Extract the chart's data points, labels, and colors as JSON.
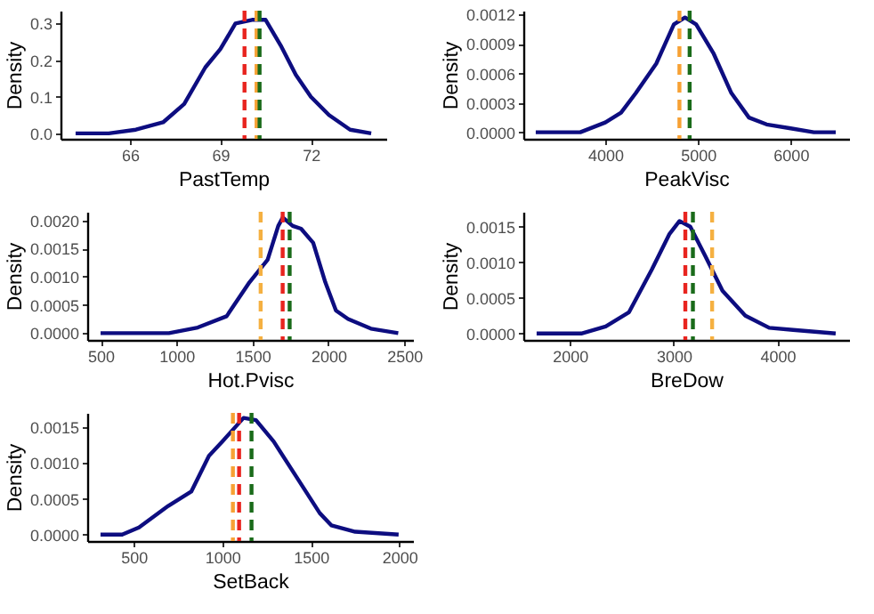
{
  "chart_data": [
    {
      "type": "line",
      "xlabel": "PastTemp",
      "ylabel": "Density",
      "xlim": [
        63.7,
        74.5
      ],
      "ylim": [
        -0.015,
        0.335
      ],
      "xticks": [
        66,
        69,
        72
      ],
      "yticks": [
        {
          "value": 0,
          "label": "0.0"
        },
        {
          "value": 0.1,
          "label": "0.1"
        },
        {
          "value": 0.2,
          "label": "0.2"
        },
        {
          "value": 0.3,
          "label": "0.3"
        }
      ],
      "x": [
        64.2,
        65.3,
        66.2,
        67.1,
        67.8,
        68.5,
        69,
        69.5,
        70.05,
        70.5,
        71,
        71.5,
        72,
        72.6,
        73.3,
        74
      ],
      "series": [
        {
          "color": "#0d0d80",
          "values": [
            0,
            0,
            0.01,
            0.03,
            0.08,
            0.18,
            0.23,
            0.3,
            0.31,
            0.31,
            0.24,
            0.16,
            0.1,
            0.05,
            0.01,
            0
          ]
        }
      ],
      "ref_lines": [
        {
          "axis": "x",
          "value": 69.8,
          "color": "#e8241f",
          "line_style": "dashed"
        },
        {
          "axis": "x",
          "value": 70.2,
          "color": "#f7a134",
          "line_style": "dashed"
        },
        {
          "axis": "x",
          "value": 70.3,
          "color": "#1a6b1a",
          "line_style": "dashed"
        }
      ]
    },
    {
      "type": "line",
      "xlabel": "PeakVisc",
      "ylabel": "Density",
      "xlim": [
        3116,
        6630
      ],
      "ylim": [
        -6.7e-05,
        0.00124
      ],
      "xticks": [
        4000,
        5000,
        6000
      ],
      "yticks": [
        {
          "value": 0,
          "label": "0.0000"
        },
        {
          "value": 0.0003,
          "label": "0.0003"
        },
        {
          "value": 0.0006,
          "label": "0.0006"
        },
        {
          "value": 0.0009,
          "label": "0.0009"
        },
        {
          "value": 0.0012,
          "label": "0.0012"
        }
      ],
      "x": [
        3250,
        3480,
        3730,
        4000,
        4170,
        4330,
        4550,
        4740,
        4860,
        4980,
        5170,
        5360,
        5550,
        5740,
        6000,
        6250,
        6486
      ],
      "series": [
        {
          "color": "#0d0d80",
          "values": [
            0,
            0,
            0,
            0.0001,
            0.0002,
            0.0004,
            0.0007,
            0.0011,
            0.00117,
            0.0011,
            0.0008,
            0.0004,
            0.00015,
            8e-05,
            4e-05,
            0,
            0
          ]
        }
      ],
      "ref_lines": [
        {
          "axis": "x",
          "value": 4800,
          "color": "#f7a134",
          "line_style": "dashed"
        },
        {
          "axis": "x",
          "value": 4910,
          "color": "#1a6b1a",
          "line_style": "dashed"
        }
      ]
    },
    {
      "type": "line",
      "xlabel": "Hot.Pvisc",
      "ylabel": "Density",
      "xlim": [
        412,
        2557
      ],
      "ylim": [
        -0.00012,
        0.00215
      ],
      "xticks": [
        500,
        1000,
        1500,
        2000,
        2500
      ],
      "yticks": [
        {
          "value": 0,
          "label": "0.0000"
        },
        {
          "value": 0.0005,
          "label": "0.0005"
        },
        {
          "value": 0.001,
          "label": "0.0010"
        },
        {
          "value": 0.0015,
          "label": "0.0015"
        },
        {
          "value": 0.002,
          "label": "0.0020"
        }
      ],
      "x": [
        500,
        950,
        1140,
        1330,
        1480,
        1600,
        1670,
        1700,
        1765,
        1820,
        1900,
        1980,
        2050,
        2130,
        2280,
        2460
      ],
      "series": [
        {
          "color": "#0d0d80",
          "values": [
            0,
            0,
            0.0001,
            0.0003,
            0.0009,
            0.0013,
            0.0019,
            0.00205,
            0.0019,
            0.00185,
            0.0016,
            0.0009,
            0.0004,
            0.00025,
            8e-05,
            0
          ]
        }
      ],
      "ref_lines": [
        {
          "axis": "x",
          "value": 1554,
          "color": "#f5b041",
          "line_style": "dashed"
        },
        {
          "axis": "x",
          "value": 1699,
          "color": "#e8241f",
          "line_style": "dashed"
        },
        {
          "axis": "x",
          "value": 1745,
          "color": "#1a6b1a",
          "line_style": "dashed"
        }
      ]
    },
    {
      "type": "line",
      "xlabel": "BreDow",
      "ylabel": "Density",
      "xlim": [
        1552,
        4689
      ],
      "ylim": [
        -9e-05,
        0.00171
      ],
      "xticks": [
        2000,
        3000,
        4000
      ],
      "yticks": [
        {
          "value": 0,
          "label": "0.0000"
        },
        {
          "value": 0.0005,
          "label": "0.0005"
        },
        {
          "value": 0.001,
          "label": "0.0010"
        },
        {
          "value": 0.0015,
          "label": "0.0015"
        }
      ],
      "x": [
        1680,
        2110,
        2345,
        2570,
        2790,
        2960,
        3056,
        3160,
        3300,
        3470,
        3690,
        3920,
        4150,
        4560
      ],
      "series": [
        {
          "color": "#0d0d80",
          "values": [
            0,
            0,
            0.0001,
            0.0003,
            0.0009,
            0.0014,
            0.00158,
            0.0015,
            0.0011,
            0.0006,
            0.00025,
            8e-05,
            5e-05,
            0
          ]
        }
      ],
      "ref_lines": [
        {
          "axis": "x",
          "value": 3112,
          "color": "#e8241f",
          "line_style": "dashed"
        },
        {
          "axis": "x",
          "value": 3185,
          "color": "#1a6b1a",
          "line_style": "dashed"
        },
        {
          "axis": "x",
          "value": 3370,
          "color": "#f5b041",
          "line_style": "dashed"
        }
      ]
    },
    {
      "type": "line",
      "xlabel": "SetBack",
      "ylabel": "Density",
      "xlim": [
        238,
        2076
      ],
      "ylim": [
        -9e-05,
        0.0017
      ],
      "xticks": [
        500,
        1000,
        1500,
        2000
      ],
      "yticks": [
        {
          "value": 0,
          "label": "0.0000"
        },
        {
          "value": 0.0005,
          "label": "0.0005"
        },
        {
          "value": 0.001,
          "label": "0.0010"
        },
        {
          "value": 0.0015,
          "label": "0.0015"
        }
      ],
      "x": [
        313,
        435,
        530,
        695,
        825,
        925,
        1000,
        1120,
        1190,
        1290,
        1420,
        1550,
        1615,
        1750,
        1995
      ],
      "series": [
        {
          "color": "#0d0d80",
          "values": [
            0,
            0,
            0.0001,
            0.0004,
            0.0006,
            0.0011,
            0.0013,
            0.00163,
            0.0016,
            0.0013,
            0.0008,
            0.0003,
            0.00013,
            4e-05,
            0
          ]
        }
      ],
      "ref_lines": [
        {
          "axis": "x",
          "value": 1060,
          "color": "#f7a134",
          "line_style": "dashed"
        },
        {
          "axis": "x",
          "value": 1095,
          "color": "#e8241f",
          "line_style": "dashed"
        },
        {
          "axis": "x",
          "value": 1165,
          "color": "#1a6b1a",
          "line_style": "dashed"
        }
      ]
    }
  ]
}
